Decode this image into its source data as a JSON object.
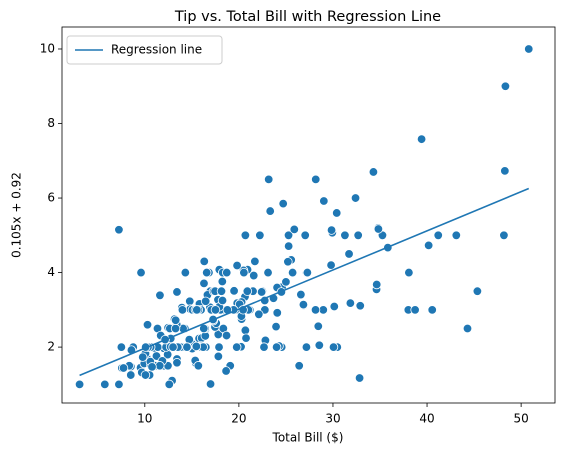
{
  "chart_data": {
    "type": "scatter",
    "title": "Tip vs. Total Bill with Regression Line",
    "xlabel": "Total Bill ($)",
    "ylabel": "0.105x + 0.92",
    "xlim": [
      1.2,
      53.6
    ],
    "ylim": [
      0.5,
      10.59
    ],
    "xticks": [
      10,
      20,
      30,
      40,
      50
    ],
    "yticks": [
      2,
      4,
      6,
      8,
      10
    ],
    "grid": false,
    "legend": "upper left",
    "series": [
      {
        "kind": "points",
        "color": "#1f77b4",
        "x": [
          16.99,
          10.34,
          21.01,
          23.68,
          24.59,
          25.29,
          8.77,
          26.88,
          15.04,
          14.78,
          10.27,
          35.26,
          15.42,
          18.43,
          14.83,
          21.58,
          10.33,
          16.29,
          16.97,
          20.65,
          17.92,
          20.29,
          15.77,
          39.42,
          19.82,
          17.81,
          13.37,
          12.69,
          21.7,
          19.65,
          9.55,
          18.35,
          15.06,
          20.69,
          17.78,
          24.06,
          16.31,
          16.93,
          18.69,
          31.27,
          16.04,
          17.46,
          13.94,
          9.68,
          30.4,
          18.29,
          22.23,
          32.4,
          28.55,
          18.04,
          12.54,
          10.29,
          34.81,
          9.94,
          25.56,
          19.49,
          38.01,
          26.41,
          11.24,
          48.27,
          20.29,
          13.81,
          11.02,
          18.29,
          17.59,
          20.08,
          16.45,
          3.07,
          20.23,
          15.01,
          12.02,
          17.07,
          26.86,
          25.28,
          14.73,
          10.51,
          17.92,
          27.2,
          22.76,
          17.29,
          19.44,
          16.66,
          10.07,
          32.68,
          15.98,
          34.83,
          13.03,
          18.28,
          24.71,
          21.16,
          28.97,
          22.49,
          5.75,
          16.32,
          22.75,
          40.17,
          27.28,
          12.03,
          21.01,
          12.46,
          11.35,
          15.38,
          44.3,
          22.42,
          20.92,
          15.36,
          20.49,
          25.21,
          18.24,
          14.31,
          14.0,
          7.25,
          38.07,
          23.95,
          25.71,
          17.31,
          29.93,
          10.65,
          12.43,
          24.08,
          11.69,
          13.42,
          14.26,
          15.95,
          12.48,
          29.8,
          8.52,
          14.52,
          11.38,
          22.82,
          19.08,
          20.27,
          11.17,
          12.26,
          18.26,
          8.51,
          10.33,
          14.15,
          16.0,
          13.16,
          17.47,
          34.3,
          41.19,
          27.05,
          16.43,
          8.35,
          18.64,
          11.87,
          9.78,
          7.51,
          14.07,
          13.13,
          17.26,
          24.55,
          19.77,
          29.85,
          48.17,
          25.0,
          13.39,
          16.49,
          21.5,
          12.66,
          16.21,
          13.81,
          17.51,
          24.52,
          20.76,
          31.71,
          10.59,
          10.63,
          50.81,
          15.81,
          7.25,
          31.85,
          16.82,
          32.9,
          17.89,
          14.48,
          9.6,
          34.63,
          34.65,
          23.33,
          45.35,
          23.17,
          40.55,
          20.69,
          20.9,
          30.46,
          18.15,
          23.1,
          15.69,
          19.81,
          28.44,
          15.48,
          16.58,
          7.56,
          10.34,
          43.11,
          13.0,
          13.51,
          18.71,
          12.74,
          13.0,
          16.4,
          20.53,
          16.47,
          26.59,
          38.73,
          24.27,
          12.76,
          30.06,
          25.89,
          48.33,
          13.27,
          28.17,
          12.9,
          28.15,
          11.59,
          7.74,
          30.14,
          12.16,
          13.42,
          8.58,
          15.98,
          13.42,
          16.27,
          10.09,
          20.45,
          13.28,
          22.12,
          24.01,
          15.69,
          11.61,
          10.77,
          15.53,
          10.07,
          12.6,
          32.83,
          35.83,
          29.03,
          27.18,
          22.67,
          17.82,
          18.78
        ],
        "values": [
          1.01,
          1.66,
          3.5,
          3.31,
          3.61,
          4.71,
          2.0,
          3.12,
          1.96,
          3.23,
          1.71,
          5.0,
          1.57,
          3.0,
          3.02,
          3.92,
          1.67,
          3.71,
          3.5,
          3.35,
          4.08,
          2.75,
          2.23,
          7.58,
          3.18,
          2.34,
          2.0,
          2.0,
          4.3,
          3.0,
          1.45,
          2.5,
          3.0,
          2.45,
          3.27,
          3.6,
          2.0,
          3.07,
          2.31,
          5.0,
          2.24,
          2.54,
          3.06,
          1.32,
          5.6,
          3.0,
          5.0,
          6.0,
          2.05,
          3.0,
          2.5,
          2.6,
          5.2,
          1.56,
          4.34,
          3.51,
          3.0,
          1.5,
          1.76,
          6.73,
          3.21,
          2.0,
          1.98,
          3.76,
          2.64,
          3.15,
          2.47,
          1.0,
          2.01,
          2.09,
          1.97,
          3.0,
          3.14,
          5.0,
          2.2,
          1.25,
          3.08,
          4.0,
          3.0,
          2.71,
          3.0,
          3.4,
          1.83,
          5.0,
          2.03,
          5.17,
          2.0,
          4.0,
          5.85,
          3.0,
          3.0,
          3.5,
          1.0,
          4.3,
          3.25,
          4.73,
          4.0,
          1.5,
          3.0,
          1.5,
          2.5,
          3.0,
          2.5,
          3.48,
          4.08,
          1.64,
          4.06,
          4.29,
          3.76,
          4.0,
          3.0,
          1.0,
          4.0,
          2.55,
          4.0,
          3.5,
          5.07,
          1.5,
          1.8,
          2.92,
          2.31,
          1.68,
          2.5,
          2.0,
          2.52,
          4.2,
          1.48,
          2.0,
          2.0,
          2.18,
          1.5,
          2.83,
          1.5,
          2.0,
          3.25,
          1.25,
          2.0,
          2.0,
          2.0,
          2.75,
          3.5,
          6.7,
          5.0,
          5.0,
          2.3,
          1.5,
          1.36,
          1.63,
          1.73,
          2.0,
          2.5,
          2.0,
          2.74,
          2.0,
          2.0,
          5.14,
          5.0,
          3.75,
          2.61,
          2.0,
          3.5,
          2.5,
          2.0,
          2.0,
          3.0,
          3.48,
          2.24,
          4.5,
          1.61,
          2.0,
          10.0,
          3.16,
          5.15,
          3.18,
          4.0,
          3.11,
          2.0,
          2.0,
          4.0,
          3.55,
          3.68,
          5.65,
          3.5,
          6.5,
          3.0,
          5.0,
          3.5,
          2.0,
          3.5,
          4.0,
          1.5,
          4.19,
          2.56,
          2.02,
          4.0,
          1.44,
          2.0,
          5.0,
          2.0,
          2.0,
          4.0,
          2.01,
          2.0,
          2.5,
          4.0,
          3.23,
          3.41,
          3.0,
          2.03,
          2.23,
          2.0,
          5.16,
          9.0,
          2.5,
          6.5,
          1.1,
          3.0,
          1.5,
          1.44,
          3.09,
          2.2,
          3.48,
          1.92,
          3.0,
          1.58,
          2.5,
          2.0,
          3.0,
          2.72,
          2.88,
          2.0,
          3.0,
          3.39,
          1.47,
          3.0,
          1.25,
          1.0,
          1.17,
          4.67,
          5.92,
          2.0,
          2.0,
          1.75,
          3.0
        ]
      },
      {
        "kind": "line",
        "name": "Regression line",
        "color": "#1f77b4",
        "x": [
          3.07,
          50.81
        ],
        "values": [
          1.242,
          6.255
        ]
      }
    ]
  }
}
